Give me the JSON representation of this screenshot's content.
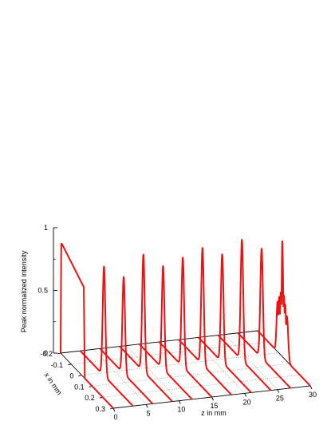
{
  "chart_data": {
    "type": "line",
    "subtype": "3d-waterfall",
    "title": "",
    "zlabel": "Peak normalized intensity",
    "xlabel": "x in mm",
    "ylabel": "z in mm",
    "zlim": [
      0,
      1
    ],
    "x_range": [
      -0.2,
      0.3
    ],
    "z_range": [
      0,
      30
    ],
    "z_ticks": [
      "0",
      "0.5",
      "1"
    ],
    "z_minor_ticks": [
      "0.25",
      "0.75"
    ],
    "x_ticks": [
      "-0.2",
      "-0.1",
      "0",
      "0.1",
      "0.2",
      "0.3"
    ],
    "y_ticks": [
      "0",
      "5",
      "10",
      "15",
      "20",
      "25",
      "30"
    ],
    "grid": true,
    "series_color": "#ee1111",
    "slices": [
      {
        "z": 0,
        "shape": "flat-top",
        "x_start": -0.2,
        "x_end": 0.02,
        "peak": 0.88,
        "shoulder": 0.72
      },
      {
        "z": 3,
        "shape": "peak",
        "center": 0.025,
        "peak": 0.87,
        "width": 0.03
      },
      {
        "z": 6,
        "shape": "peak",
        "center": 0.025,
        "peak": 0.77,
        "width": 0.03
      },
      {
        "z": 9,
        "shape": "peak",
        "center": 0.025,
        "peak": 0.93,
        "width": 0.03
      },
      {
        "z": 12,
        "shape": "peak",
        "center": 0.025,
        "peak": 0.82,
        "width": 0.03
      },
      {
        "z": 15,
        "shape": "peak",
        "center": 0.025,
        "peak": 0.87,
        "width": 0.03
      },
      {
        "z": 18,
        "shape": "peak",
        "center": 0.025,
        "peak": 0.93,
        "width": 0.03
      },
      {
        "z": 21,
        "shape": "peak",
        "center": 0.025,
        "peak": 0.86,
        "width": 0.03
      },
      {
        "z": 24,
        "shape": "peak",
        "center": 0.025,
        "peak": 0.96,
        "width": 0.03
      },
      {
        "z": 27,
        "shape": "peak",
        "center": 0.025,
        "peak": 0.87,
        "width": 0.03
      },
      {
        "z": 30,
        "shape": "multi-peak",
        "peaks": [
          {
            "x": -0.01,
            "h": 0.4,
            "w": 0.01
          },
          {
            "x": 0.005,
            "h": 0.45,
            "w": 0.008
          },
          {
            "x": 0.02,
            "h": 0.5,
            "w": 0.008
          },
          {
            "x": 0.035,
            "h": 0.92,
            "w": 0.007
          },
          {
            "x": 0.05,
            "h": 0.5,
            "w": 0.008
          },
          {
            "x": 0.062,
            "h": 0.44,
            "w": 0.008
          },
          {
            "x": 0.078,
            "h": 0.36,
            "w": 0.012
          }
        ]
      }
    ]
  }
}
